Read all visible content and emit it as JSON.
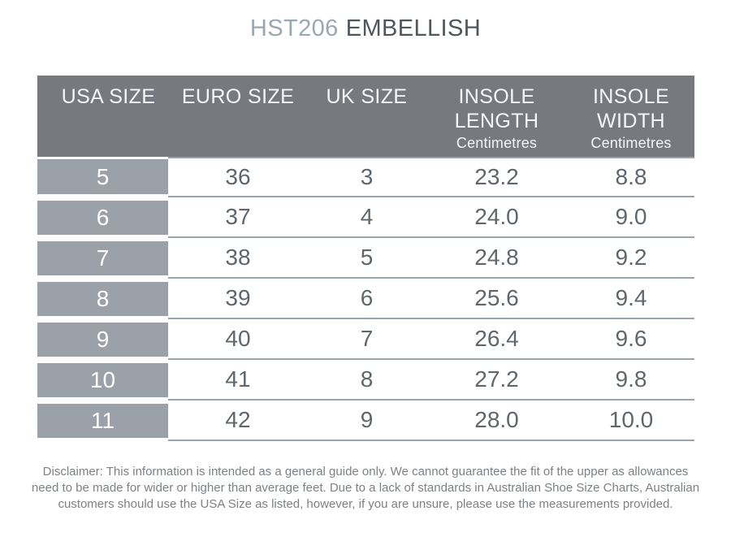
{
  "title": {
    "code": "HST206",
    "name": "EMBELLISH"
  },
  "colors": {
    "title_code": "#9aa8b1",
    "title_name": "#4f565c",
    "header_background": "#76797e",
    "header_text": "#f5f6f7",
    "first_column_background": "#9ba1a9",
    "first_column_text": "#ffffff",
    "body_text": "#5f666c",
    "row_separator_line": "#9ca3a9",
    "disclaimer_text": "#7d8184"
  },
  "table": {
    "columns": [
      {
        "label": "USA SIZE"
      },
      {
        "label": "EURO SIZE"
      },
      {
        "label": "UK SIZE"
      },
      {
        "label": "INSOLE",
        "label2": "LENGTH",
        "unit": "Centimetres"
      },
      {
        "label": "INSOLE",
        "label2": "WIDTH",
        "unit": "Centimetres"
      }
    ],
    "rows": [
      {
        "usa": "5",
        "euro": "36",
        "uk": "3",
        "insole_length": "23.2",
        "insole_width": "8.8"
      },
      {
        "usa": "6",
        "euro": "37",
        "uk": "4",
        "insole_length": "24.0",
        "insole_width": "9.0"
      },
      {
        "usa": "7",
        "euro": "38",
        "uk": "5",
        "insole_length": "24.8",
        "insole_width": "9.2"
      },
      {
        "usa": "8",
        "euro": "39",
        "uk": "6",
        "insole_length": "25.6",
        "insole_width": "9.4"
      },
      {
        "usa": "9",
        "euro": "40",
        "uk": "7",
        "insole_length": "26.4",
        "insole_width": "9.6"
      },
      {
        "usa": "10",
        "euro": "41",
        "uk": "8",
        "insole_length": "27.2",
        "insole_width": "9.8"
      },
      {
        "usa": "11",
        "euro": "42",
        "uk": "9",
        "insole_length": "28.0",
        "insole_width": "10.0"
      }
    ]
  },
  "disclaimer": {
    "full_text": "Disclaimer: This information is intended as a general guide only. We cannot guarantee the fit of the upper as allowances need to be made for wider or higher than average feet. Due to a lack of standards in Australian Shoe Size Charts, Australian customers should use the USA Size as listed, however, if you are unsure, please use the measurements provided.",
    "lines": [
      "Disclaimer: This information is intended as a general guide only. We cannot guarantee the fit of the upper as allowances",
      "need to be made for wider or higher than average feet. Due to a lack of standards in Australian Shoe Size Charts, Australian",
      "customers should use the USA Size as listed, however, if you are unsure, please use the measurements provided."
    ]
  }
}
